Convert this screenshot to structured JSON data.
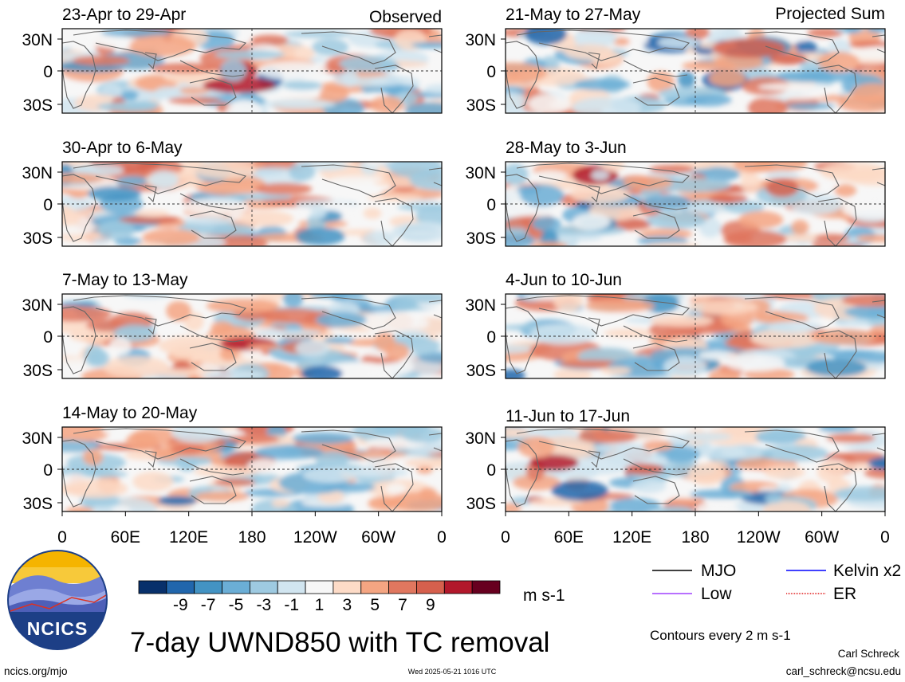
{
  "figure": {
    "title": "7-day UWND850 with TC removal",
    "status_left": "Observed",
    "status_right": "Projected Sum",
    "credit_name": "Carl Schreck",
    "credit_email": "carl_schreck@ncsu.edu",
    "site": "ncics.org/mjo",
    "timestamp": "Wed 2025-05-21 1016 UTC",
    "logo_text": "NCICS",
    "contour_note": "Contours every 2 m s-1"
  },
  "panels": {
    "left": [
      {
        "title": "23-Apr to 29-Apr"
      },
      {
        "title": "30-Apr to 6-May"
      },
      {
        "title": "7-May to 13-May"
      },
      {
        "title": "14-May to 20-May"
      }
    ],
    "right": [
      {
        "title": "21-May to 27-May"
      },
      {
        "title": "28-May to 3-Jun"
      },
      {
        "title": "4-Jun to 10-Jun"
      },
      {
        "title": "11-Jun to 17-Jun"
      }
    ]
  },
  "axes": {
    "lat_ticks": [
      "30N",
      "0",
      "30S"
    ],
    "lon_ticks": [
      "0",
      "60E",
      "120E",
      "180",
      "120W",
      "60W",
      "0"
    ]
  },
  "colorbar": {
    "units": "m s-1",
    "labels": [
      "-9",
      "-7",
      "-5",
      "-3",
      "-1",
      "1",
      "3",
      "5",
      "7",
      "9"
    ],
    "colors": [
      "#08306b",
      "#2166ac",
      "#4393c3",
      "#6baed6",
      "#9ecae1",
      "#d1e5f0",
      "#f7f7f7",
      "#fddbc7",
      "#f4a582",
      "#e0775f",
      "#d6604d",
      "#b2182b",
      "#67001f"
    ]
  },
  "legend": {
    "items": [
      {
        "label": "MJO",
        "color": "#000000"
      },
      {
        "label": "Kelvin x2",
        "color": "#0000ff"
      },
      {
        "label": "Low",
        "color": "#a040ff"
      },
      {
        "label": "ER",
        "color": "#e02020"
      }
    ]
  }
}
